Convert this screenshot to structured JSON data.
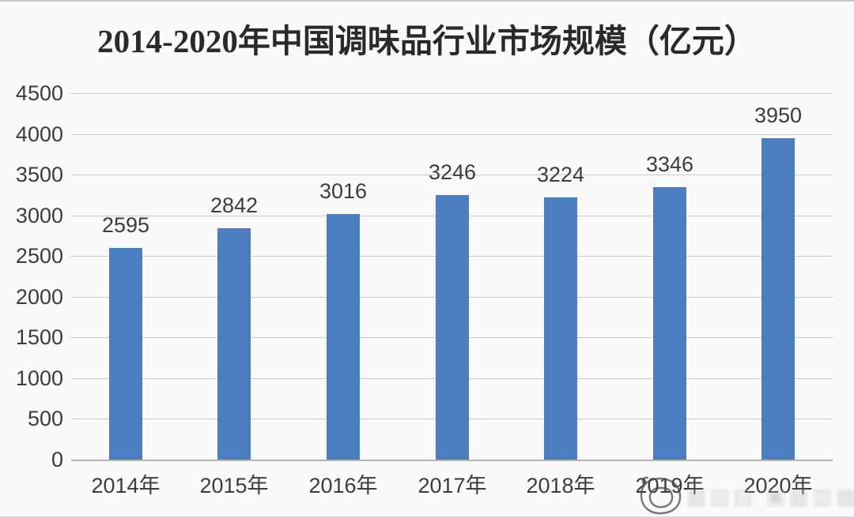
{
  "page": {
    "background": "#fafafa"
  },
  "chart_data": {
    "type": "bar",
    "title": "2014-2020年中国调味品行业市场规模（亿元）",
    "categories": [
      "2014年",
      "2015年",
      "2016年",
      "2017年",
      "2018年",
      "2019年",
      "2020年"
    ],
    "values": [
      2595,
      2842,
      3016,
      3246,
      3224,
      3346,
      3950
    ],
    "xlabel": "",
    "ylabel": "",
    "ylim": [
      0,
      4500
    ],
    "ytick_step": 500,
    "yticks": [
      4500,
      4000,
      3500,
      3000,
      2500,
      2000,
      1500,
      1000,
      500,
      0
    ],
    "grid": "horizontal",
    "legend": "none",
    "data_labels": true,
    "colors": {
      "bar": "#4a7ec1",
      "gridline": "#c9c9c9",
      "baseline": "#b3b3b3",
      "label_text": "#3c3c3c",
      "title_text": "#2a2a2a"
    }
  },
  "watermark": {
    "doodle_icon": "scribble-circle-icon",
    "glyphs": "▦▥▤ ▣▦▥▦"
  }
}
